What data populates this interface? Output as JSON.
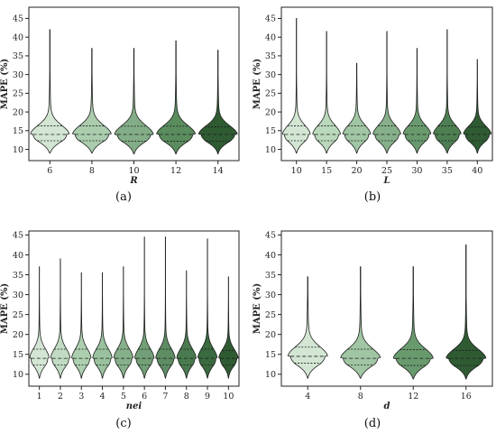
{
  "chart_data": [
    {
      "type": "violin",
      "caption": "(a)",
      "xlabel": "R",
      "ylabel": "MAPE (%)",
      "ylim": [
        7,
        48
      ],
      "yticks": [
        10,
        15,
        20,
        25,
        30,
        35,
        40,
        45
      ],
      "categories": [
        "6",
        "8",
        "10",
        "12",
        "14"
      ],
      "colors": [
        "#d3e6d4",
        "#abcdae",
        "#83ad86",
        "#5a8c5e",
        "#2f5b33"
      ],
      "series": [
        {
          "category": "6",
          "min": 9.0,
          "q1": 12.3,
          "median": 14.0,
          "q3": 16.3,
          "max": 42.0
        },
        {
          "category": "8",
          "min": 9.0,
          "q1": 12.3,
          "median": 14.0,
          "q3": 16.3,
          "max": 37.0
        },
        {
          "category": "10",
          "min": 8.8,
          "q1": 12.2,
          "median": 14.0,
          "q3": 16.2,
          "max": 37.0
        },
        {
          "category": "12",
          "min": 8.8,
          "q1": 12.2,
          "median": 14.0,
          "q3": 16.2,
          "max": 39.0
        },
        {
          "category": "14",
          "min": 8.8,
          "q1": 12.2,
          "median": 14.0,
          "q3": 16.0,
          "max": 36.5
        }
      ]
    },
    {
      "type": "violin",
      "caption": "(b)",
      "xlabel": "L",
      "ylabel": "MAPE (%)",
      "ylim": [
        7,
        48
      ],
      "yticks": [
        10,
        15,
        20,
        25,
        30,
        35,
        40,
        45
      ],
      "categories": [
        "10",
        "15",
        "20",
        "25",
        "30",
        "35",
        "40"
      ],
      "colors": [
        "#d3e6d4",
        "#bad8bc",
        "#a1c6a4",
        "#86b08a",
        "#699a6e",
        "#4d7f52",
        "#2f5b33"
      ],
      "series": [
        {
          "category": "10",
          "min": 9.0,
          "q1": 12.3,
          "median": 14.0,
          "q3": 16.3,
          "max": 45.0
        },
        {
          "category": "15",
          "min": 9.0,
          "q1": 12.3,
          "median": 14.0,
          "q3": 16.3,
          "max": 41.5
        },
        {
          "category": "20",
          "min": 9.0,
          "q1": 12.3,
          "median": 14.0,
          "q3": 16.3,
          "max": 33.0
        },
        {
          "category": "25",
          "min": 9.0,
          "q1": 12.3,
          "median": 14.0,
          "q3": 16.3,
          "max": 41.5
        },
        {
          "category": "30",
          "min": 9.0,
          "q1": 12.3,
          "median": 14.0,
          "q3": 16.3,
          "max": 37.0
        },
        {
          "category": "35",
          "min": 9.0,
          "q1": 12.3,
          "median": 14.0,
          "q3": 16.3,
          "max": 42.0
        },
        {
          "category": "40",
          "min": 9.0,
          "q1": 12.3,
          "median": 14.0,
          "q3": 16.0,
          "max": 34.0
        }
      ]
    },
    {
      "type": "violin",
      "caption": "(c)",
      "xlabel": "nei",
      "ylabel": "MAPE (%)",
      "ylim": [
        7,
        46
      ],
      "yticks": [
        10,
        15,
        20,
        25,
        30,
        35,
        40,
        45
      ],
      "categories": [
        "1",
        "2",
        "3",
        "4",
        "5",
        "6",
        "7",
        "8",
        "9",
        "10"
      ],
      "colors": [
        "#d3e6d4",
        "#c0dbc2",
        "#adcfb0",
        "#9ac19e",
        "#86b08a",
        "#729f77",
        "#5e8c63",
        "#4a7a4f",
        "#3a6a3f",
        "#2f5b33"
      ],
      "series": [
        {
          "category": "1",
          "min": 9.0,
          "q1": 12.3,
          "median": 14.0,
          "q3": 16.3,
          "max": 37.0
        },
        {
          "category": "2",
          "min": 9.0,
          "q1": 12.3,
          "median": 14.0,
          "q3": 16.3,
          "max": 39.0
        },
        {
          "category": "3",
          "min": 9.0,
          "q1": 12.3,
          "median": 14.0,
          "q3": 16.3,
          "max": 35.5
        },
        {
          "category": "4",
          "min": 9.0,
          "q1": 12.3,
          "median": 14.0,
          "q3": 16.3,
          "max": 35.5
        },
        {
          "category": "5",
          "min": 9.0,
          "q1": 12.3,
          "median": 14.0,
          "q3": 16.3,
          "max": 37.0
        },
        {
          "category": "6",
          "min": 9.0,
          "q1": 12.3,
          "median": 14.0,
          "q3": 16.3,
          "max": 44.5
        },
        {
          "category": "7",
          "min": 9.0,
          "q1": 12.3,
          "median": 14.0,
          "q3": 16.3,
          "max": 44.5
        },
        {
          "category": "8",
          "min": 9.0,
          "q1": 12.3,
          "median": 14.0,
          "q3": 16.3,
          "max": 36.0
        },
        {
          "category": "9",
          "min": 9.0,
          "q1": 12.3,
          "median": 14.0,
          "q3": 16.3,
          "max": 44.0
        },
        {
          "category": "10",
          "min": 9.0,
          "q1": 12.3,
          "median": 14.0,
          "q3": 16.0,
          "max": 34.5
        }
      ]
    },
    {
      "type": "violin",
      "caption": "(d)",
      "xlabel": "d",
      "ylabel": "MAPE (%)",
      "ylim": [
        7,
        46
      ],
      "yticks": [
        10,
        15,
        20,
        25,
        30,
        35,
        40,
        45
      ],
      "categories": [
        "4",
        "8",
        "12",
        "16"
      ],
      "colors": [
        "#d3e6d4",
        "#a1c6a4",
        "#699a6e",
        "#2f5b33"
      ],
      "series": [
        {
          "category": "4",
          "min": 9.0,
          "q1": 12.8,
          "median": 14.5,
          "q3": 16.8,
          "max": 34.5
        },
        {
          "category": "8",
          "min": 9.0,
          "q1": 12.3,
          "median": 14.0,
          "q3": 16.3,
          "max": 37.0
        },
        {
          "category": "12",
          "min": 8.8,
          "q1": 12.2,
          "median": 14.0,
          "q3": 16.2,
          "max": 37.0
        },
        {
          "category": "16",
          "min": 8.8,
          "q1": 12.2,
          "median": 14.0,
          "q3": 16.0,
          "max": 42.5
        }
      ]
    }
  ]
}
